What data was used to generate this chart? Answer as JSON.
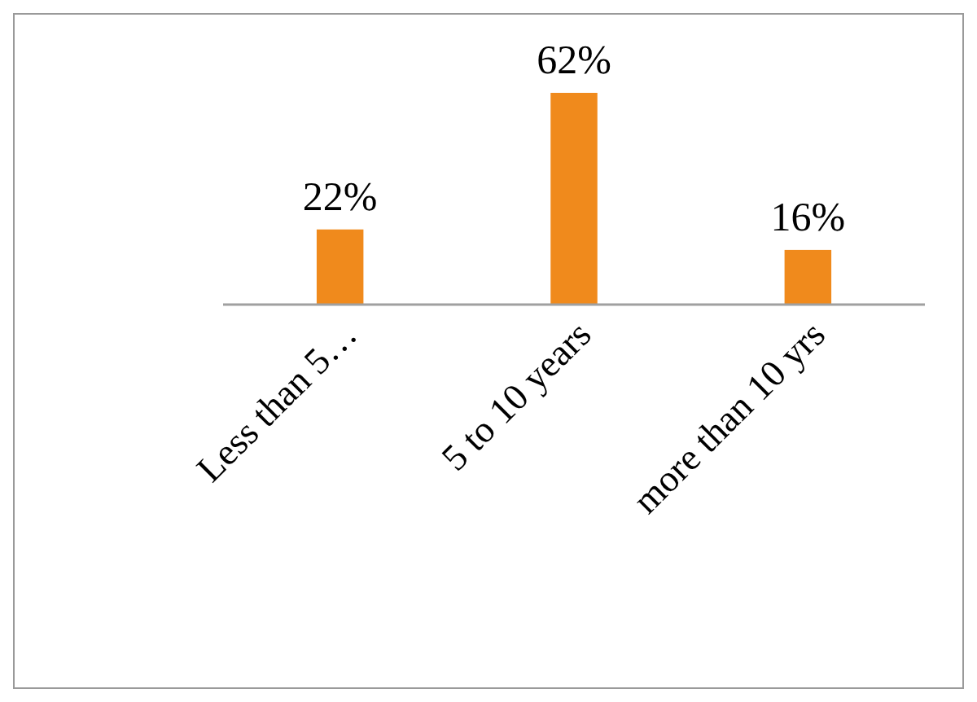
{
  "chart_data": {
    "type": "bar",
    "categories": [
      "Less than 5…",
      "5 to 10 years",
      "more than 10 yrs"
    ],
    "values": [
      22,
      62,
      16
    ],
    "value_labels": [
      "22%",
      "62%",
      "16%"
    ],
    "color": "#f08a1c"
  }
}
